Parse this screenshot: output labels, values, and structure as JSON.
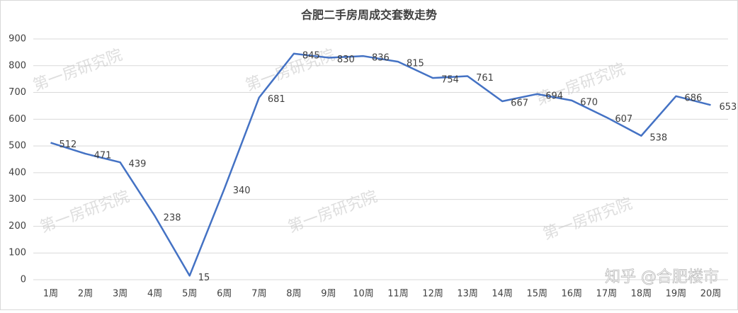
{
  "chart_data": {
    "type": "line",
    "title": "合肥二手房周成交套数走势",
    "categories": [
      "1周",
      "2周",
      "3周",
      "4周",
      "5周",
      "6周",
      "7周",
      "8周",
      "9周",
      "10周",
      "11周",
      "12周",
      "13周",
      "14周",
      "15周",
      "16周",
      "17周",
      "18周",
      "19周",
      "20周"
    ],
    "values": [
      512,
      471,
      439,
      238,
      15,
      340,
      681,
      845,
      830,
      836,
      815,
      754,
      761,
      667,
      694,
      670,
      607,
      538,
      686,
      653
    ],
    "color": "#4472c4",
    "ylim": [
      0,
      900
    ],
    "yticks": [
      0,
      100,
      200,
      300,
      400,
      500,
      600,
      700,
      800,
      900
    ],
    "grid": true,
    "watermark": "第一房研究院",
    "credit": "知乎 @合肥楼市"
  }
}
